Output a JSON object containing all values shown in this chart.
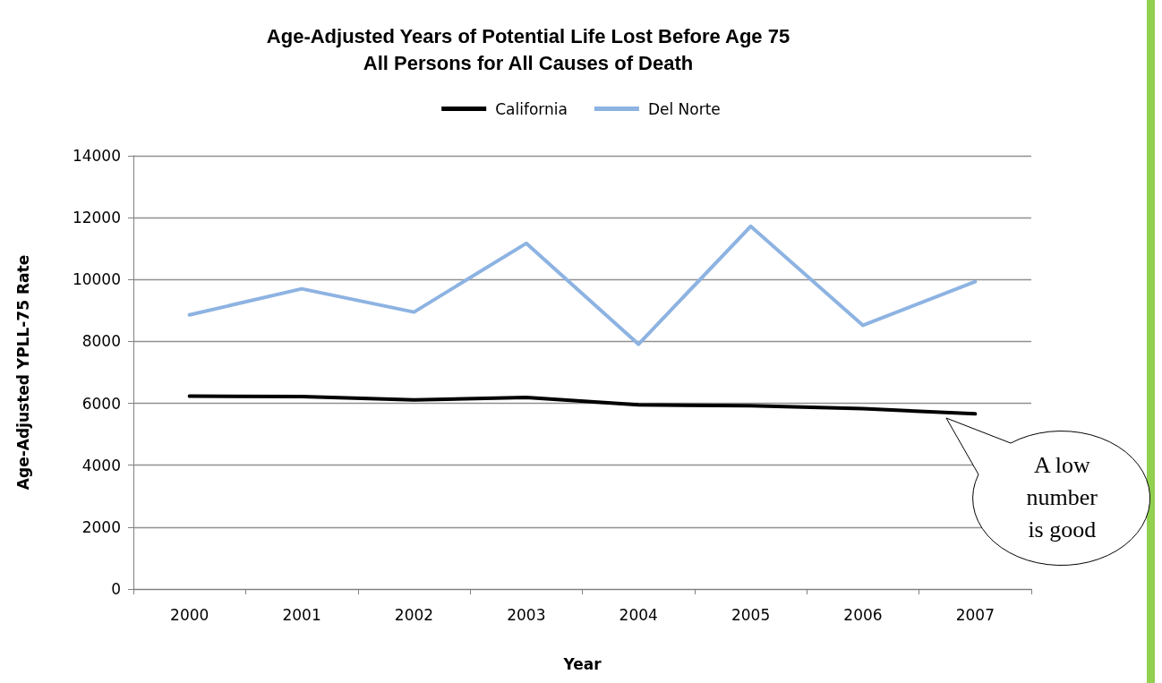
{
  "chart_data": {
    "type": "line",
    "title": "Age-Adjusted Years of Potential Life Lost Before Age 75\nAll Persons for All Causes of Death",
    "xlabel": "Year",
    "ylabel": "Age-Adjusted YPLL-75 Rate",
    "categories": [
      "2000",
      "2001",
      "2002",
      "2003",
      "2004",
      "2005",
      "2006",
      "2007"
    ],
    "series": [
      {
        "name": "California",
        "color": "#000000",
        "values": [
          6230,
          6220,
          6110,
          6190,
          5950,
          5920,
          5830,
          5660
        ]
      },
      {
        "name": "Del Norte",
        "color": "#8db3e2",
        "values": [
          8860,
          9700,
          8950,
          11170,
          7910,
          11720,
          8520,
          9930
        ]
      }
    ],
    "ylim": [
      0,
      14000
    ],
    "yticks": [
      0,
      2000,
      4000,
      6000,
      8000,
      10000,
      12000,
      14000
    ],
    "grid": "y",
    "legend": "top",
    "marker": "none",
    "line_style": "solid",
    "annotations": [
      {
        "text": "A low\nnumber\nis good",
        "x": "2007",
        "y": 5660
      }
    ]
  }
}
